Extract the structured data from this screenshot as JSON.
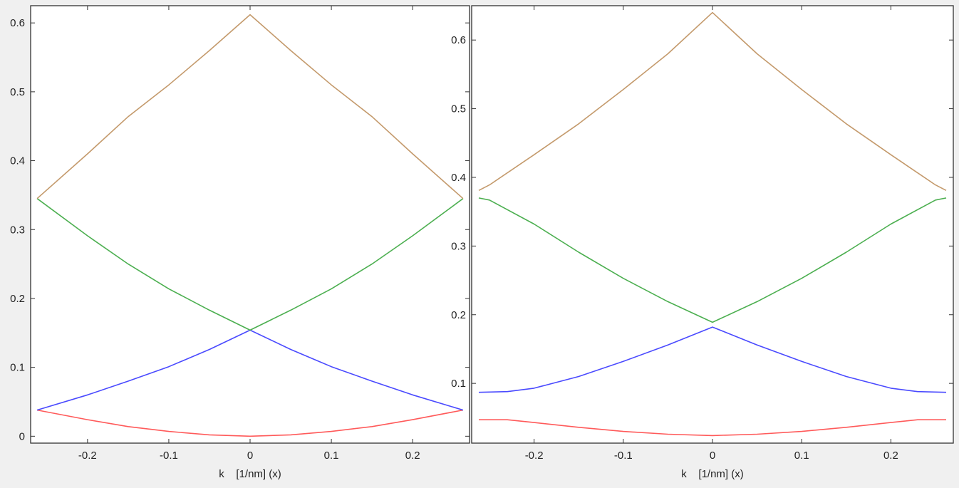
{
  "chart_data": [
    {
      "type": "line",
      "xlabel": "k    [1/nm] (x)",
      "ylabel": "",
      "xlim": [
        -0.27,
        0.27
      ],
      "ylim": [
        -0.01,
        0.625
      ],
      "xticks": [
        -0.2,
        -0.1,
        0,
        0.1,
        0.2
      ],
      "xtick_labels": [
        "-0.2",
        "-0.1",
        "0",
        "0.1",
        "0.2"
      ],
      "yticks": [
        0,
        0.1,
        0.2,
        0.3,
        0.4,
        0.5,
        0.6
      ],
      "ytick_labels": [
        "0",
        "0.1",
        "0.2",
        "0.3",
        "0.4",
        "0.5",
        "0.6"
      ],
      "grid": false,
      "series": [
        {
          "color": "#ff5a5a",
          "x": [
            -0.262,
            -0.2,
            -0.15,
            -0.1,
            -0.05,
            0,
            0.05,
            0.1,
            0.15,
            0.2,
            0.262
          ],
          "y": [
            0.038,
            0.024,
            0.014,
            0.007,
            0.002,
            0.0,
            0.002,
            0.007,
            0.014,
            0.024,
            0.038
          ]
        },
        {
          "color": "#4a4aff",
          "x": [
            -0.262,
            -0.2,
            -0.15,
            -0.1,
            -0.05,
            0,
            0.05,
            0.1,
            0.15,
            0.2,
            0.262
          ],
          "y": [
            0.038,
            0.06,
            0.08,
            0.101,
            0.126,
            0.154,
            0.126,
            0.101,
            0.08,
            0.06,
            0.038
          ]
        },
        {
          "color": "#4caf50",
          "x": [
            -0.262,
            -0.2,
            -0.15,
            -0.1,
            -0.05,
            0,
            0.05,
            0.1,
            0.15,
            0.2,
            0.262
          ],
          "y": [
            0.345,
            0.291,
            0.25,
            0.214,
            0.183,
            0.154,
            0.183,
            0.214,
            0.25,
            0.291,
            0.345
          ]
        },
        {
          "color": "#c49a6c",
          "x": [
            -0.262,
            -0.2,
            -0.15,
            -0.1,
            -0.05,
            0,
            0.05,
            0.1,
            0.15,
            0.2,
            0.262
          ],
          "y": [
            0.345,
            0.41,
            0.464,
            0.51,
            0.56,
            0.612,
            0.56,
            0.51,
            0.464,
            0.41,
            0.345
          ]
        }
      ]
    },
    {
      "type": "line",
      "xlabel": "k    [1/nm] (x)",
      "ylabel": "",
      "xlim": [
        -0.27,
        0.27
      ],
      "ylim": [
        0.013,
        0.65
      ],
      "xticks": [
        -0.2,
        -0.1,
        0,
        0.1,
        0.2
      ],
      "xtick_labels": [
        "-0.2",
        "-0.1",
        "0",
        "0.1",
        "0.2"
      ],
      "yticks": [
        0.1,
        0.2,
        0.3,
        0.4,
        0.5,
        0.6
      ],
      "ytick_labels": [
        "0.1",
        "0.2",
        "0.3",
        "0.4",
        "0.5",
        "0.6"
      ],
      "grid": false,
      "series": [
        {
          "color": "#ff5a5a",
          "x": [
            -0.262,
            -0.23,
            -0.2,
            -0.15,
            -0.1,
            -0.05,
            0,
            0.05,
            0.1,
            0.15,
            0.2,
            0.23,
            0.262
          ],
          "y": [
            0.047,
            0.047,
            0.043,
            0.036,
            0.03,
            0.026,
            0.024,
            0.026,
            0.03,
            0.036,
            0.043,
            0.047,
            0.047
          ]
        },
        {
          "color": "#4a4aff",
          "x": [
            -0.262,
            -0.23,
            -0.2,
            -0.15,
            -0.1,
            -0.05,
            0,
            0.05,
            0.1,
            0.15,
            0.2,
            0.23,
            0.262
          ],
          "y": [
            0.087,
            0.088,
            0.093,
            0.11,
            0.132,
            0.156,
            0.182,
            0.156,
            0.132,
            0.11,
            0.093,
            0.088,
            0.087
          ]
        },
        {
          "color": "#4caf50",
          "x": [
            -0.262,
            -0.25,
            -0.2,
            -0.15,
            -0.1,
            -0.05,
            0,
            0.05,
            0.1,
            0.15,
            0.2,
            0.25,
            0.262
          ],
          "y": [
            0.37,
            0.367,
            0.332,
            0.291,
            0.253,
            0.219,
            0.189,
            0.219,
            0.253,
            0.291,
            0.332,
            0.367,
            0.37
          ]
        },
        {
          "color": "#c49a6c",
          "x": [
            -0.262,
            -0.25,
            -0.2,
            -0.15,
            -0.1,
            -0.05,
            0,
            0.05,
            0.1,
            0.15,
            0.2,
            0.25,
            0.262
          ],
          "y": [
            0.381,
            0.389,
            0.433,
            0.478,
            0.528,
            0.58,
            0.64,
            0.58,
            0.528,
            0.478,
            0.433,
            0.389,
            0.381
          ]
        }
      ]
    }
  ]
}
